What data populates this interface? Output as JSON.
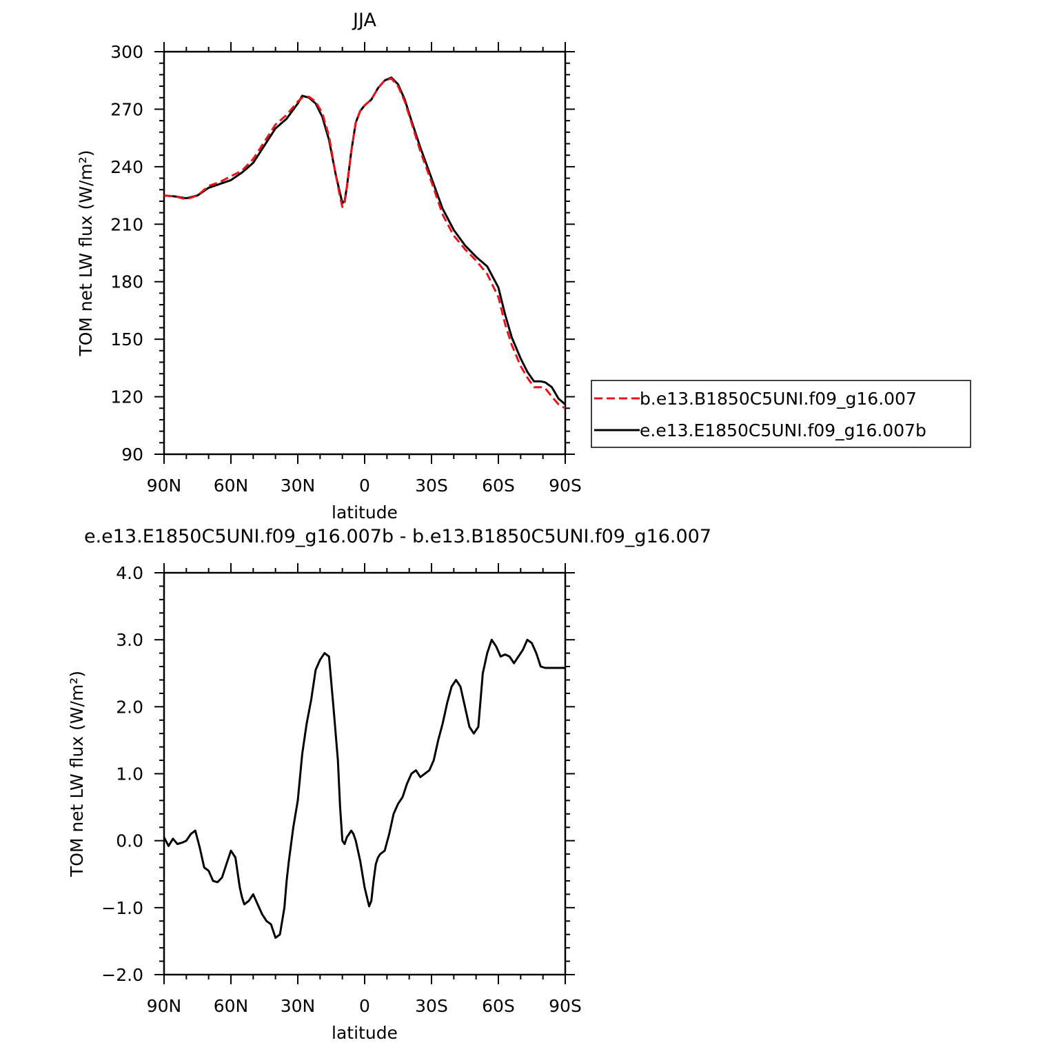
{
  "chart_data": [
    {
      "type": "line",
      "title": "JJA",
      "xlabel": "latitude",
      "ylabel": "TOM net LW flux (W/m²)",
      "xlim": [
        90,
        -90
      ],
      "ylim": [
        90,
        300
      ],
      "xticks": [
        90,
        60,
        30,
        0,
        -30,
        -60,
        -90
      ],
      "xtick_labels": [
        "90N",
        "60N",
        "30N",
        "0",
        "30S",
        "60S",
        "90S"
      ],
      "yticks": [
        90,
        120,
        150,
        180,
        210,
        240,
        270,
        300
      ],
      "ytick_labels": [
        "90",
        "120",
        "150",
        "180",
        "210",
        "240",
        "270",
        "300"
      ],
      "legend": "right",
      "series": [
        {
          "name": "b.e13.B1850C5UNI.f09_g16.007",
          "color": "#e8141a",
          "dash": "dashed",
          "x": [
            90,
            85,
            80,
            75,
            70,
            65,
            60,
            55,
            50,
            45,
            40,
            35,
            30,
            28,
            25,
            22,
            19,
            16,
            13,
            11,
            10,
            9,
            8,
            6,
            4,
            2,
            0,
            -3,
            -6,
            -9,
            -12,
            -15,
            -18,
            -21,
            -25,
            -30,
            -35,
            -40,
            -45,
            -50,
            -55,
            -60,
            -63,
            -66,
            -70,
            -73,
            -76,
            -79,
            -81,
            -84,
            -87,
            -90
          ],
          "y": [
            225,
            224.5,
            223,
            225,
            230,
            232,
            235,
            238,
            244,
            253,
            262,
            267,
            274,
            276,
            276.5,
            274,
            268,
            256,
            236,
            224,
            219,
            221,
            229,
            248,
            263,
            269,
            272,
            275,
            281,
            285,
            286,
            282,
            274,
            263,
            248,
            232,
            215,
            204,
            197,
            191,
            184,
            172,
            158,
            147,
            136,
            130,
            125,
            125,
            124.5,
            120,
            116,
            114
          ]
        },
        {
          "name": "e.e13.E1850C5UNI.f09_g16.007b",
          "color": "#000000",
          "dash": "solid",
          "x": [
            90,
            85,
            80,
            75,
            70,
            65,
            60,
            55,
            50,
            45,
            40,
            35,
            30,
            28,
            25,
            22,
            19,
            16,
            13,
            11,
            10,
            9,
            8,
            6,
            4,
            2,
            0,
            -3,
            -6,
            -9,
            -12,
            -15,
            -18,
            -21,
            -25,
            -30,
            -35,
            -40,
            -45,
            -50,
            -55,
            -60,
            -63,
            -66,
            -70,
            -73,
            -76,
            -79,
            -81,
            -84,
            -87,
            -90
          ],
          "y": [
            225,
            224.5,
            223.5,
            225,
            229,
            231,
            233,
            237,
            242,
            251,
            260,
            265,
            273,
            277,
            276,
            273,
            266,
            254,
            236,
            226,
            221,
            222,
            229,
            248,
            263,
            269,
            272,
            275,
            281,
            285,
            286.5,
            283,
            275,
            264,
            250,
            234,
            218,
            207,
            199,
            193,
            188,
            177,
            163,
            151,
            140,
            133,
            128,
            128,
            127.5,
            125,
            119,
            116
          ]
        }
      ]
    },
    {
      "type": "line",
      "title": "e.e13.E1850C5UNI.f09_g16.007b - b.e13.B1850C5UNI.f09_g16.007",
      "xlabel": "latitude",
      "ylabel": "TOM net LW flux (W/m²)",
      "xlim": [
        90,
        -90
      ],
      "ylim": [
        -2.0,
        4.0
      ],
      "xticks": [
        90,
        60,
        30,
        0,
        -30,
        -60,
        -90
      ],
      "xtick_labels": [
        "90N",
        "60N",
        "30N",
        "0",
        "30S",
        "60S",
        "90S"
      ],
      "yticks": [
        -2.0,
        -1.0,
        0.0,
        1.0,
        2.0,
        3.0,
        4.0
      ],
      "ytick_labels": [
        "−2.0",
        "−1.0",
        "0.0",
        "1.0",
        "2.0",
        "3.0",
        "4.0"
      ],
      "series": [
        {
          "color": "#000000",
          "dash": "solid",
          "x": [
            90,
            88,
            86,
            84,
            82,
            80,
            78,
            76,
            74,
            72,
            70,
            68,
            66,
            64,
            62,
            60,
            58,
            56,
            55,
            54,
            52,
            50,
            48,
            46,
            44,
            42,
            40,
            38,
            36,
            35,
            34,
            32,
            30,
            28,
            26,
            24,
            22,
            20,
            18,
            16,
            14,
            12,
            11,
            10,
            9,
            8,
            7,
            6,
            5,
            4,
            3,
            2,
            0,
            -2,
            -3,
            -4,
            -5,
            -6,
            -7,
            -9,
            -11,
            -13,
            -15,
            -17,
            -19,
            -21,
            -23,
            -25,
            -27,
            -29,
            -31,
            -33,
            -35,
            -37,
            -39,
            -41,
            -43,
            -45,
            -47,
            -49,
            -51,
            -53,
            -55,
            -57,
            -59,
            -61,
            -63,
            -65,
            -67,
            -69,
            -71,
            -73,
            -75,
            -77,
            -79,
            -81,
            -83,
            -85,
            -87,
            -89,
            -90
          ],
          "y": [
            0.05,
            -0.08,
            0.03,
            -0.05,
            -0.03,
            0.0,
            0.1,
            0.15,
            -0.1,
            -0.4,
            -0.45,
            -0.6,
            -0.62,
            -0.55,
            -0.35,
            -0.15,
            -0.25,
            -0.7,
            -0.85,
            -0.95,
            -0.9,
            -0.8,
            -0.95,
            -1.1,
            -1.2,
            -1.25,
            -1.45,
            -1.4,
            -1.0,
            -0.6,
            -0.3,
            0.2,
            0.6,
            1.3,
            1.75,
            2.1,
            2.55,
            2.7,
            2.8,
            2.75,
            2.0,
            1.2,
            0.5,
            0.0,
            -0.05,
            0.05,
            0.1,
            0.15,
            0.1,
            0.0,
            -0.15,
            -0.3,
            -0.7,
            -0.98,
            -0.9,
            -0.6,
            -0.35,
            -0.25,
            -0.2,
            -0.15,
            0.1,
            0.4,
            0.55,
            0.65,
            0.85,
            1.0,
            1.05,
            0.95,
            1.0,
            1.05,
            1.2,
            1.5,
            1.75,
            2.05,
            2.3,
            2.4,
            2.3,
            2.0,
            1.7,
            1.6,
            1.7,
            2.5,
            2.8,
            3.0,
            2.9,
            2.75,
            2.78,
            2.75,
            2.65,
            2.75,
            2.85,
            3.0,
            2.95,
            2.8,
            2.6,
            2.58,
            2.58,
            2.58,
            2.58,
            2.58,
            2.58
          ]
        }
      ]
    }
  ]
}
